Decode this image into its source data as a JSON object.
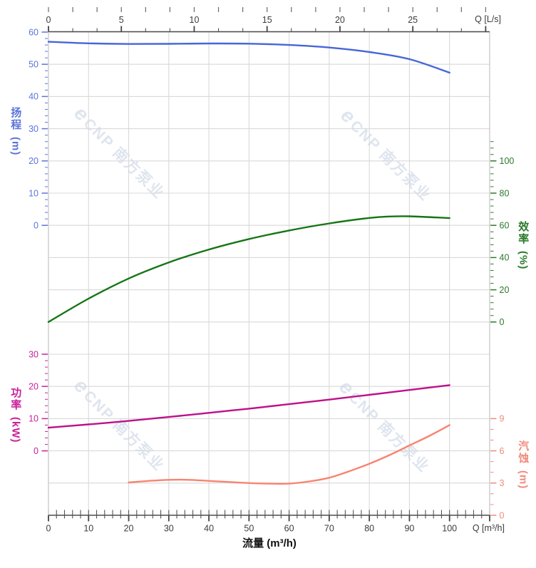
{
  "watermark": {
    "logo": "e",
    "text": "CNP 南方泵业"
  },
  "chart_data": {
    "type": "line",
    "title": "",
    "grid": true,
    "legend": "none",
    "axes": {
      "flow_bottom": {
        "unit_label": "Q [m³/h]",
        "axis_title": "流量 (m³/h)",
        "tick_labels": [
          0,
          10,
          20,
          30,
          40,
          50,
          60,
          70,
          80,
          90,
          100
        ],
        "minor_step": 2,
        "range": [
          0,
          110
        ],
        "color": "#3c3c3c"
      },
      "flow_top": {
        "unit_label": "Q [L/s]",
        "tick_labels": [
          0,
          5,
          10,
          15,
          20,
          25
        ],
        "minors_per_major": 3,
        "range": [
          0,
          30.3
        ],
        "color": "#3c3c3c"
      },
      "head": {
        "title": "扬程",
        "unit": "(m)",
        "tick_labels": [
          60,
          50,
          40,
          30,
          20,
          10,
          0
        ],
        "minor_step": 2,
        "range": [
          0,
          60
        ],
        "label_color": "#5b74dc",
        "curve_color": "#4666d9"
      },
      "efficiency": {
        "title": "效率",
        "unit": "(%)",
        "tick_labels": [
          100,
          80,
          60,
          40,
          20,
          0
        ],
        "minor_step": 4,
        "range": [
          0,
          112
        ],
        "label_color": "#2a7a2a",
        "curve_color": "#157515"
      },
      "power": {
        "title": "功率",
        "unit": "(kW)",
        "tick_labels": [
          30,
          20,
          10,
          0
        ],
        "minor_step": 2,
        "range": [
          0,
          30
        ],
        "label_color": "#c8219a",
        "curve_color": "#be1089"
      },
      "npsh": {
        "title": "汽蚀",
        "unit": "(m)",
        "tick_labels": [
          9,
          6,
          3,
          0
        ],
        "minor_step": 1,
        "range": [
          0,
          9
        ],
        "label_color": "#f2897c",
        "curve_color": "#f9836f"
      }
    },
    "series": [
      {
        "name": "head",
        "axis": "head",
        "x": [
          0,
          10,
          20,
          30,
          40,
          50,
          60,
          70,
          80,
          90,
          100
        ],
        "y": [
          57.0,
          56.5,
          56.3,
          56.35,
          56.45,
          56.4,
          56.0,
          55.2,
          53.8,
          51.6,
          47.4
        ]
      },
      {
        "name": "efficiency",
        "axis": "efficiency",
        "x": [
          0,
          10,
          20,
          30,
          40,
          50,
          60,
          70,
          80,
          85,
          90,
          100
        ],
        "y": [
          0,
          14.5,
          27,
          37,
          45,
          51.5,
          56.8,
          61.2,
          64.6,
          65.5,
          65.6,
          64.5
        ]
      },
      {
        "name": "power",
        "axis": "power",
        "x": [
          0,
          10,
          20,
          30,
          40,
          50,
          60,
          70,
          80,
          90,
          100
        ],
        "y": [
          7.2,
          8.2,
          9.3,
          10.5,
          11.8,
          13.1,
          14.5,
          15.9,
          17.4,
          18.9,
          20.4
        ]
      },
      {
        "name": "npsh",
        "axis": "npsh",
        "x": [
          20,
          25,
          30,
          35,
          40,
          45,
          50,
          55,
          60,
          65,
          70,
          75,
          80,
          85,
          90,
          95,
          100
        ],
        "y": [
          3.05,
          3.2,
          3.3,
          3.3,
          3.2,
          3.1,
          3.0,
          2.95,
          2.95,
          3.15,
          3.5,
          4.1,
          4.8,
          5.6,
          6.5,
          7.4,
          8.4
        ]
      }
    ]
  }
}
